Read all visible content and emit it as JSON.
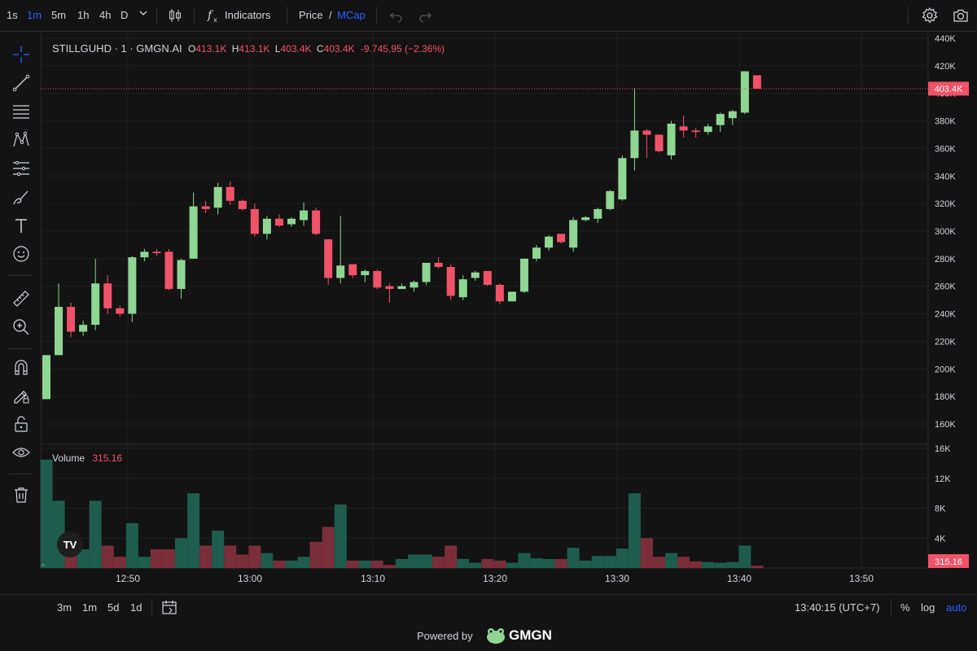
{
  "toolbar": {
    "timeframes": [
      {
        "label": "1s",
        "active": false
      },
      {
        "label": "1m",
        "active": true
      },
      {
        "label": "5m",
        "active": false
      },
      {
        "label": "1h",
        "active": false
      },
      {
        "label": "4h",
        "active": false
      },
      {
        "label": "D",
        "active": false
      }
    ],
    "indicators_label": "Indicators",
    "price_label": "Price",
    "price_sep": "/",
    "mcap_label": "MCap"
  },
  "legend": {
    "symbol": "STILLGUHD · 1 · GMGN.AI",
    "o_label": "O",
    "o_value": "413.1K",
    "h_label": "H",
    "h_value": "413.1K",
    "l_label": "L",
    "l_value": "403.4K",
    "c_label": "C",
    "c_value": "403.4K",
    "change": "-9.745,95 (−2.36%)"
  },
  "volume_legend": {
    "label": "Volume",
    "value": "315.16"
  },
  "price_axis": {
    "ticks": [
      "440K",
      "420K",
      "400K",
      "380K",
      "360K",
      "340K",
      "320K",
      "300K",
      "280K",
      "260K",
      "240K",
      "220K",
      "200K",
      "180K",
      "160K"
    ],
    "current_label": "403.4K"
  },
  "volume_axis": {
    "ticks": [
      "16K",
      "12K",
      "8K",
      "4K"
    ],
    "current_label": "315.16"
  },
  "time_axis": [
    "12:50",
    "13:00",
    "13:10",
    "13:20",
    "13:30",
    "13:40",
    "13:50"
  ],
  "bottom": {
    "ranges": [
      "3m",
      "1m",
      "5d",
      "1d"
    ],
    "clock": "13:40:15 (UTC+7)",
    "percent": "%",
    "log": "log",
    "auto": "auto"
  },
  "footer": {
    "powered": "Powered by",
    "brand": "GMGN"
  },
  "colors": {
    "up": "#8fd694",
    "down": "#f0526a",
    "vol_up": "#1e5c4e",
    "vol_down": "#7a2e3a",
    "accent": "#2962ff"
  },
  "chart_data": {
    "type": "candlestick",
    "price_range": [
      150000,
      450000
    ],
    "volume_range": [
      0,
      16000
    ],
    "candles": [
      {
        "o": 178000,
        "h": 210000,
        "l": 178000,
        "c": 210000,
        "v": 14500
      },
      {
        "o": 210000,
        "h": 262000,
        "l": 210000,
        "c": 245000,
        "v": 9000
      },
      {
        "o": 245000,
        "h": 248000,
        "l": 223000,
        "c": 227000,
        "v": 4000
      },
      {
        "o": 227000,
        "h": 235000,
        "l": 224000,
        "c": 232000,
        "v": 2500
      },
      {
        "o": 232000,
        "h": 280000,
        "l": 228000,
        "c": 262000,
        "v": 9000
      },
      {
        "o": 262000,
        "h": 268000,
        "l": 240000,
        "c": 244000,
        "v": 3000
      },
      {
        "o": 244000,
        "h": 246000,
        "l": 238000,
        "c": 240000,
        "v": 1500
      },
      {
        "o": 240000,
        "h": 282000,
        "l": 234000,
        "c": 281000,
        "v": 6000
      },
      {
        "o": 281000,
        "h": 287000,
        "l": 278000,
        "c": 285000,
        "v": 1500
      },
      {
        "o": 285000,
        "h": 287000,
        "l": 282000,
        "c": 284000,
        "v": 2500
      },
      {
        "o": 285000,
        "h": 287000,
        "l": 257000,
        "c": 258000,
        "v": 2500
      },
      {
        "o": 258000,
        "h": 280000,
        "l": 251000,
        "c": 279000,
        "v": 4000
      },
      {
        "o": 280000,
        "h": 328000,
        "l": 280000,
        "c": 318000,
        "v": 10000
      },
      {
        "o": 318000,
        "h": 322000,
        "l": 313000,
        "c": 316000,
        "v": 3000
      },
      {
        "o": 317000,
        "h": 335000,
        "l": 312000,
        "c": 332000,
        "v": 5000
      },
      {
        "o": 332000,
        "h": 336000,
        "l": 319000,
        "c": 322000,
        "v": 3000
      },
      {
        "o": 322000,
        "h": 323000,
        "l": 315000,
        "c": 316000,
        "v": 1800
      },
      {
        "o": 316000,
        "h": 320000,
        "l": 296000,
        "c": 298000,
        "v": 3000
      },
      {
        "o": 298000,
        "h": 311000,
        "l": 294000,
        "c": 309000,
        "v": 2000
      },
      {
        "o": 309000,
        "h": 312000,
        "l": 303000,
        "c": 304000,
        "v": 1000
      },
      {
        "o": 305000,
        "h": 310000,
        "l": 303000,
        "c": 309000,
        "v": 1000
      },
      {
        "o": 308000,
        "h": 321000,
        "l": 304000,
        "c": 315000,
        "v": 1500
      },
      {
        "o": 315000,
        "h": 317000,
        "l": 297000,
        "c": 298000,
        "v": 3500
      },
      {
        "o": 294000,
        "h": 294000,
        "l": 261000,
        "c": 266000,
        "v": 5500
      },
      {
        "o": 266000,
        "h": 311000,
        "l": 262000,
        "c": 275000,
        "v": 8500
      },
      {
        "o": 276000,
        "h": 276000,
        "l": 266000,
        "c": 268000,
        "v": 1000
      },
      {
        "o": 268000,
        "h": 272000,
        "l": 263000,
        "c": 271000,
        "v": 1000
      },
      {
        "o": 271000,
        "h": 272000,
        "l": 258000,
        "c": 259000,
        "v": 1000
      },
      {
        "o": 260000,
        "h": 262000,
        "l": 248000,
        "c": 258000,
        "v": 400
      },
      {
        "o": 258000,
        "h": 262000,
        "l": 258000,
        "c": 260000,
        "v": 1200
      },
      {
        "o": 259000,
        "h": 264000,
        "l": 256000,
        "c": 263000,
        "v": 1800
      },
      {
        "o": 263000,
        "h": 277000,
        "l": 261000,
        "c": 277000,
        "v": 1800
      },
      {
        "o": 277000,
        "h": 281000,
        "l": 273000,
        "c": 274000,
        "v": 1500
      },
      {
        "o": 274000,
        "h": 276000,
        "l": 250000,
        "c": 253000,
        "v": 3000
      },
      {
        "o": 252000,
        "h": 268000,
        "l": 250000,
        "c": 265000,
        "v": 1200
      },
      {
        "o": 266000,
        "h": 271000,
        "l": 264000,
        "c": 270000,
        "v": 700
      },
      {
        "o": 271000,
        "h": 271000,
        "l": 260000,
        "c": 261000,
        "v": 1200
      },
      {
        "o": 261000,
        "h": 262000,
        "l": 247000,
        "c": 249000,
        "v": 1000
      },
      {
        "o": 249000,
        "h": 256000,
        "l": 249000,
        "c": 256000,
        "v": 700
      },
      {
        "o": 256000,
        "h": 280000,
        "l": 255000,
        "c": 280000,
        "v": 2000
      },
      {
        "o": 280000,
        "h": 290000,
        "l": 278000,
        "c": 288000,
        "v": 1300
      },
      {
        "o": 288000,
        "h": 297000,
        "l": 286000,
        "c": 296000,
        "v": 1200
      },
      {
        "o": 298000,
        "h": 298000,
        "l": 291000,
        "c": 292000,
        "v": 1200
      },
      {
        "o": 288000,
        "h": 310000,
        "l": 285000,
        "c": 308000,
        "v": 2700
      },
      {
        "o": 308000,
        "h": 311000,
        "l": 307000,
        "c": 310000,
        "v": 1000
      },
      {
        "o": 309000,
        "h": 317000,
        "l": 306000,
        "c": 316000,
        "v": 1600
      },
      {
        "o": 316000,
        "h": 330000,
        "l": 315000,
        "c": 329000,
        "v": 1600
      },
      {
        "o": 323000,
        "h": 355000,
        "l": 322000,
        "c": 353000,
        "v": 2600
      },
      {
        "o": 353000,
        "h": 404000,
        "l": 344000,
        "c": 373000,
        "v": 10000
      },
      {
        "o": 373000,
        "h": 374000,
        "l": 353000,
        "c": 370000,
        "v": 4000
      },
      {
        "o": 370000,
        "h": 370000,
        "l": 357000,
        "c": 358000,
        "v": 1500
      },
      {
        "o": 355000,
        "h": 380000,
        "l": 352000,
        "c": 378000,
        "v": 2000
      },
      {
        "o": 376000,
        "h": 384000,
        "l": 368000,
        "c": 373000,
        "v": 1500
      },
      {
        "o": 373000,
        "h": 375000,
        "l": 368000,
        "c": 372000,
        "v": 900
      },
      {
        "o": 372000,
        "h": 378000,
        "l": 370000,
        "c": 376000,
        "v": 800
      },
      {
        "o": 377000,
        "h": 386000,
        "l": 372000,
        "c": 385000,
        "v": 700
      },
      {
        "o": 382000,
        "h": 388000,
        "l": 377000,
        "c": 387000,
        "v": 800
      },
      {
        "o": 386000,
        "h": 416000,
        "l": 385000,
        "c": 416000,
        "v": 3000
      },
      {
        "o": 413100,
        "h": 413100,
        "l": 403400,
        "c": 403400,
        "v": 315
      }
    ]
  }
}
